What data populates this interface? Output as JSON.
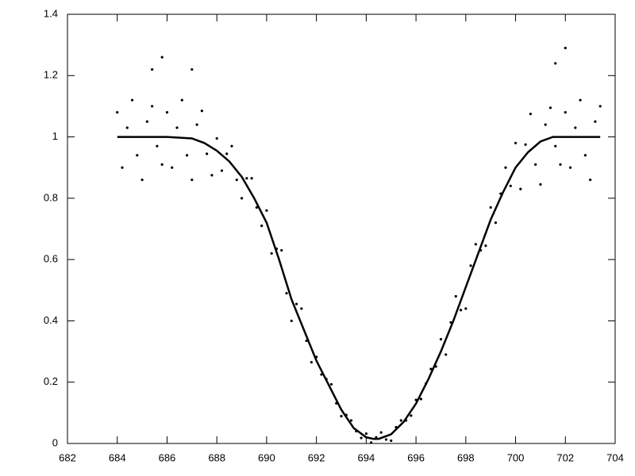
{
  "chart_data": {
    "type": "scatter",
    "xlim": [
      682,
      704
    ],
    "xticks": [
      682,
      684,
      686,
      688,
      690,
      692,
      694,
      696,
      698,
      700,
      702,
      704
    ],
    "ylim": [
      0,
      1.4
    ],
    "yticks": [
      0,
      0.2,
      0.4,
      0.6,
      0.8,
      1,
      1.2,
      1.4
    ],
    "series": [
      {
        "type": "scatter",
        "color": "#000000",
        "x": [
          684.0,
          684.2,
          684.4,
          684.6,
          684.8,
          685.0,
          685.2,
          685.4,
          685.6,
          685.8,
          686.0,
          686.2,
          686.4,
          686.6,
          686.8,
          687.0,
          687.2,
          687.4,
          687.6,
          687.8,
          688.0,
          688.2,
          688.4,
          688.6,
          688.8,
          689.0,
          689.2,
          689.4,
          689.6,
          689.8,
          690.0,
          690.2,
          690.4,
          690.6,
          690.8,
          691.0,
          691.2,
          691.4,
          691.6,
          691.8,
          692.0,
          692.2,
          692.4,
          692.6,
          692.8,
          693.0,
          693.2,
          693.4,
          693.6,
          693.8,
          694.0,
          694.2,
          694.4,
          694.6,
          694.8,
          695.0,
          695.2,
          695.4,
          695.6,
          695.8,
          696.0,
          696.2,
          696.4,
          696.6,
          696.8,
          697.0,
          697.2,
          697.4,
          697.6,
          697.8,
          698.0,
          698.2,
          698.4,
          698.6,
          698.8,
          699.0,
          699.2,
          699.4,
          699.6,
          699.8,
          700.0,
          700.2,
          700.4,
          700.6,
          700.8,
          701.0,
          701.2,
          701.4,
          701.6,
          701.8,
          702.0,
          702.2,
          702.4,
          702.6,
          702.8,
          703.0,
          703.2,
          703.4,
          685.8,
          687.0,
          702.0,
          685.4,
          701.6
        ],
        "y": [
          1.08,
          0.9,
          1.03,
          1.12,
          0.94,
          0.86,
          1.05,
          1.1,
          0.97,
          0.91,
          1.08,
          0.9,
          1.03,
          1.12,
          0.94,
          0.86,
          1.04,
          1.085,
          0.945,
          0.875,
          0.995,
          0.89,
          0.945,
          0.97,
          0.86,
          0.8,
          0.865,
          0.865,
          0.77,
          0.71,
          0.76,
          0.62,
          0.635,
          0.63,
          0.49,
          0.4,
          0.455,
          0.44,
          0.335,
          0.265,
          0.282,
          0.225,
          0.21,
          0.193,
          0.131,
          0.089,
          0.093,
          0.075,
          0.04,
          0.018,
          0.032,
          0.003,
          0.02,
          0.036,
          0.013,
          0.009,
          0.053,
          0.075,
          0.075,
          0.091,
          0.142,
          0.145,
          0.195,
          0.243,
          0.251,
          0.34,
          0.29,
          0.395,
          0.48,
          0.435,
          0.44,
          0.58,
          0.65,
          0.63,
          0.645,
          0.77,
          0.72,
          0.815,
          0.9,
          0.84,
          0.98,
          0.83,
          0.975,
          1.075,
          0.91,
          0.845,
          1.04,
          1.095,
          0.97,
          0.91,
          1.08,
          0.9,
          1.03,
          1.12,
          0.94,
          0.86,
          1.05,
          1.1,
          1.26,
          1.22,
          1.29,
          1.22,
          1.24
        ]
      },
      {
        "type": "line",
        "color": "#000000",
        "x": [
          684,
          685,
          686,
          687,
          687.5,
          688,
          688.5,
          689,
          689.5,
          690,
          690.5,
          691,
          691.5,
          692,
          692.5,
          693,
          693.5,
          694,
          694.3,
          694.5,
          695,
          695.5,
          696,
          696.5,
          697,
          697.5,
          698,
          698.5,
          699,
          699.5,
          700,
          700.5,
          701,
          701.5,
          702,
          703,
          703.4
        ],
        "y": [
          1,
          1,
          1,
          0.995,
          0.98,
          0.955,
          0.92,
          0.87,
          0.8,
          0.72,
          0.6,
          0.47,
          0.37,
          0.27,
          0.19,
          0.11,
          0.05,
          0.02,
          0.015,
          0.015,
          0.03,
          0.07,
          0.13,
          0.21,
          0.3,
          0.4,
          0.51,
          0.62,
          0.73,
          0.82,
          0.9,
          0.95,
          0.985,
          1,
          1,
          1,
          1
        ]
      }
    ]
  }
}
